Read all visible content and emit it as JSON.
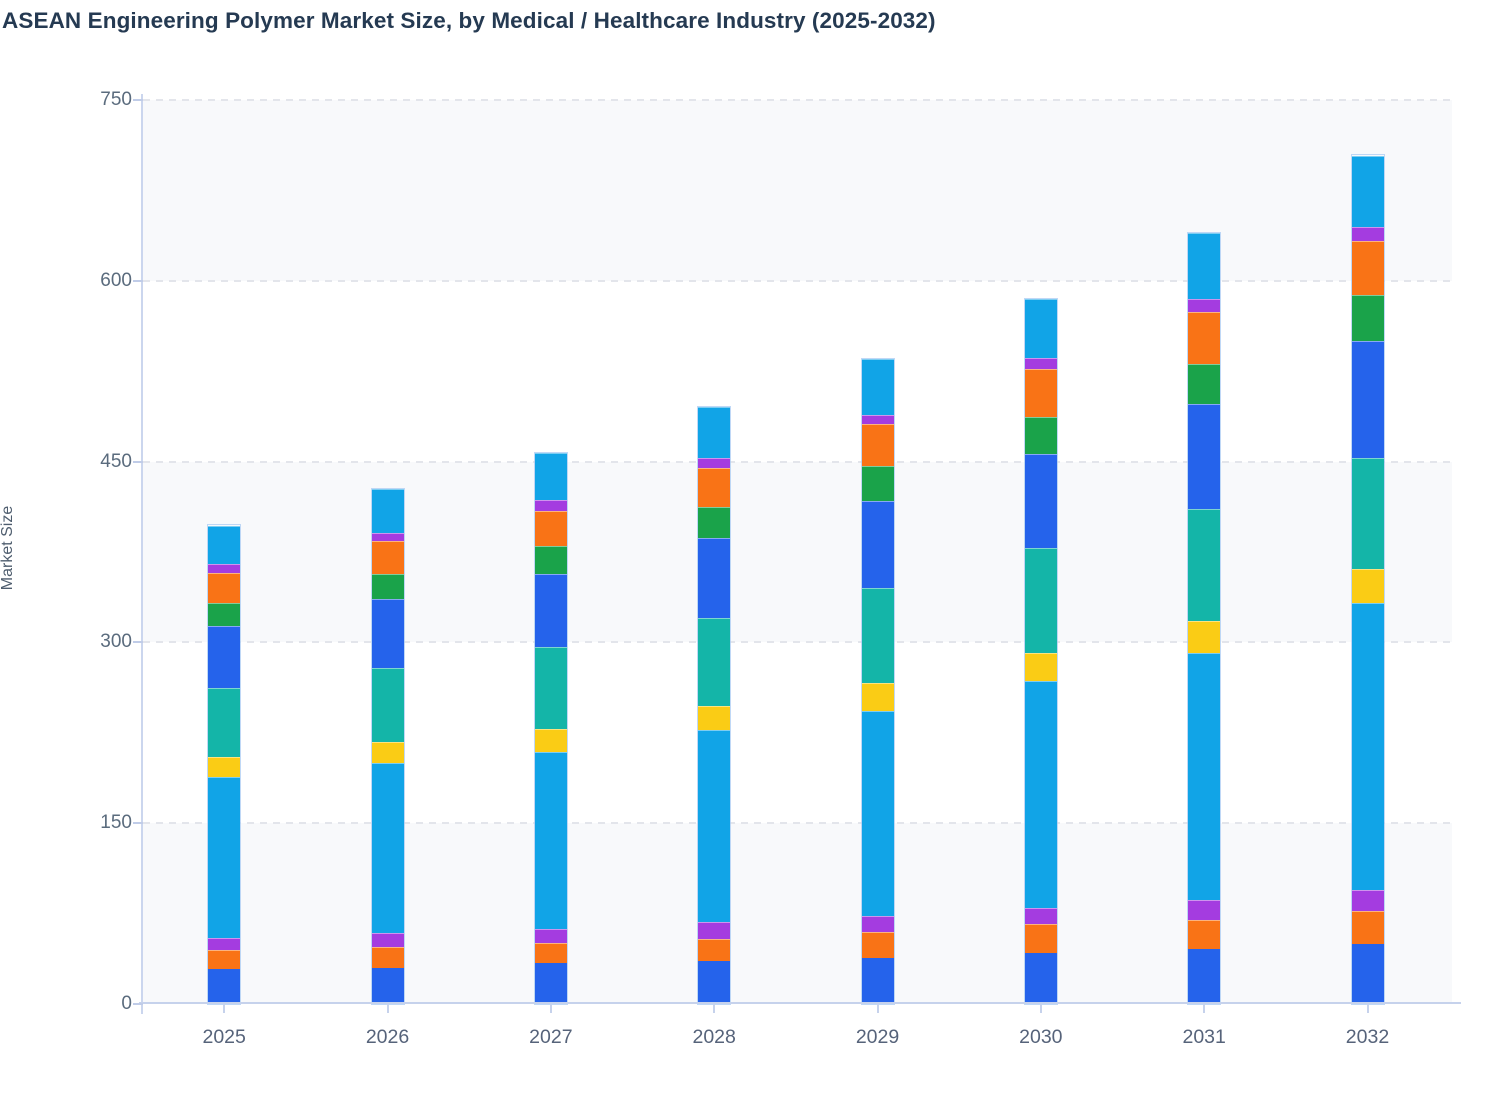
{
  "page_title": "ASEAN Engineering Polymer Market Size, by Medical / Healthcare Industry (2025-2032)",
  "chart_data": {
    "type": "bar",
    "stacked": true,
    "title": "ASEAN Engineering Polymer Market Size, by Medical / Healthcare Industry (2025-2032)",
    "xlabel": "",
    "ylabel": "Market Size",
    "categories": [
      "2025",
      "2026",
      "2027",
      "2028",
      "2029",
      "2030",
      "2031",
      "2032"
    ],
    "y_ticks": [
      0,
      150,
      300,
      450,
      600,
      750
    ],
    "ylim": [
      0,
      750
    ],
    "grid": "horizontal-dashed",
    "legend_position": "none",
    "band_fill": "alternating horizontal bands between gridlines",
    "series": [
      {
        "name": "segment-01-blue",
        "color": "#2563eb",
        "values": [
          29,
          30,
          34,
          36,
          38,
          42,
          46,
          50
        ]
      },
      {
        "name": "segment-02-orange",
        "color": "#f97316",
        "values": [
          16,
          17,
          17,
          18,
          22,
          24,
          24,
          27
        ]
      },
      {
        "name": "segment-03-purple",
        "color": "#a43ce0",
        "values": [
          10,
          12,
          11,
          14,
          13,
          14,
          16,
          18
        ]
      },
      {
        "name": "segment-04-sky",
        "color": "#11a4e7",
        "values": [
          133,
          141,
          147,
          159,
          170,
          188,
          205,
          238
        ]
      },
      {
        "name": "segment-05-yellow",
        "color": "#facc15",
        "values": [
          17,
          17,
          19,
          20,
          23,
          23,
          27,
          28
        ]
      },
      {
        "name": "segment-06-teal",
        "color": "#14b5a8",
        "values": [
          57,
          62,
          68,
          73,
          79,
          87,
          93,
          92
        ]
      },
      {
        "name": "segment-07-blue",
        "color": "#2563eb",
        "values": [
          52,
          57,
          61,
          67,
          72,
          78,
          87,
          97
        ]
      },
      {
        "name": "segment-08-green",
        "color": "#1aa34a",
        "values": [
          19,
          21,
          23,
          25,
          29,
          31,
          33,
          38
        ]
      },
      {
        "name": "segment-09-orange",
        "color": "#f97316",
        "values": [
          25,
          27,
          29,
          33,
          35,
          40,
          43,
          45
        ]
      },
      {
        "name": "segment-10-purple",
        "color": "#a43ce0",
        "values": [
          7,
          7,
          9,
          8,
          8,
          9,
          11,
          12
        ]
      },
      {
        "name": "segment-11-sky",
        "color": "#11a4e7",
        "values": [
          32,
          36,
          39,
          42,
          46,
          49,
          55,
          59
        ]
      }
    ],
    "stack_totals": [
      397,
      427,
      457,
      495,
      535,
      585,
      640,
      704
    ]
  },
  "colors": {
    "title_text": "#253a52",
    "axis_line": "#c6d2ec",
    "tick_label": "#5a6b7d",
    "gridline": "#e3e5eb",
    "band": "#f8f9fb"
  }
}
